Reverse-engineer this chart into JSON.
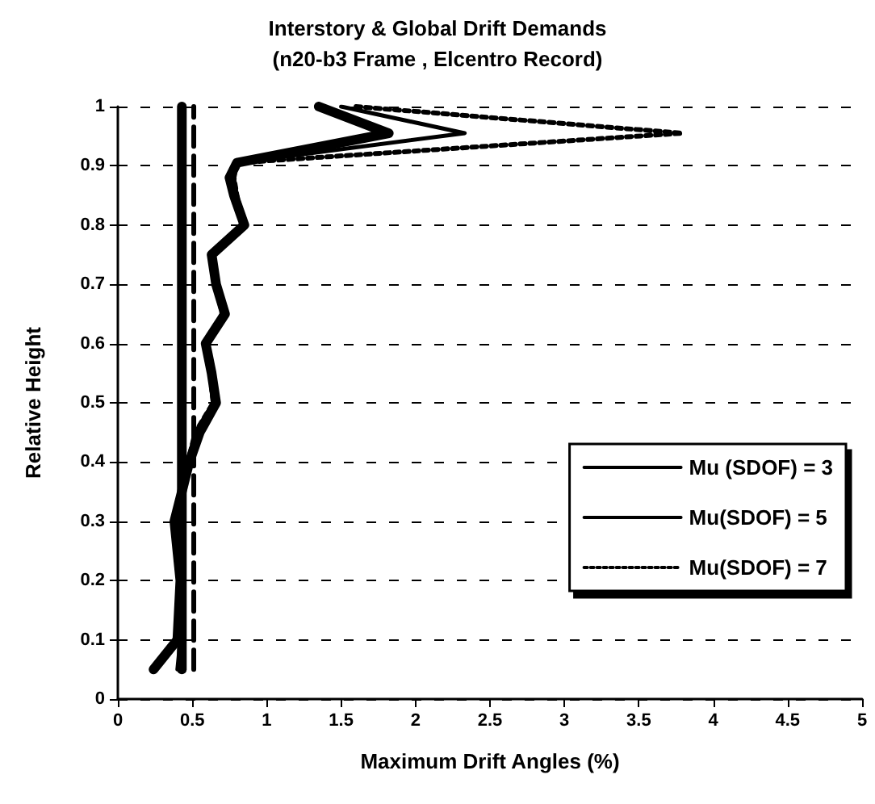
{
  "chart_data": {
    "type": "line",
    "title": "Interstory & Global Drift Demands",
    "subtitle": "(n20-b3 Frame , Elcentro Record)",
    "xlabel": "Maximum Drift Angles (%)",
    "ylabel": "Relative Height",
    "xlim": [
      0,
      5
    ],
    "xticks": [
      0,
      0.5,
      1,
      1.5,
      2,
      2.5,
      3,
      3.5,
      4,
      4.5,
      5
    ],
    "ylim": [
      0,
      1
    ],
    "yticks": [
      0,
      0.1,
      0.2,
      0.3,
      0.4,
      0.5,
      0.6,
      0.7,
      0.8,
      0.9,
      1
    ],
    "grid": "y",
    "legend": "right",
    "marker": "none",
    "series": [
      {
        "name": "Mu (SDOF) = 3",
        "color": "#000000",
        "line_style": "solid",
        "x": [
          1.35,
          1.82,
          0.8,
          0.75,
          0.78,
          0.85,
          0.63,
          0.66,
          0.72,
          0.59,
          0.63,
          0.66,
          0.55,
          0.48,
          0.43,
          0.38,
          0.42,
          0.4,
          0.24
        ],
        "values": [
          1,
          0.955,
          0.905,
          0.88,
          0.85,
          0.8,
          0.75,
          0.7,
          0.65,
          0.6,
          0.55,
          0.5,
          0.45,
          0.4,
          0.35,
          0.3,
          0.2,
          0.1,
          0.05
        ]
      },
      {
        "color": "#000000",
        "line_style": "solid",
        "x": [
          0.43,
          0.43
        ],
        "values": [
          0.05,
          1
        ]
      },
      {
        "name": "Mu(SDOF) = 5",
        "color": "#000000",
        "line_style": "solid",
        "x": [
          1.5,
          2.33,
          0.8,
          0.78,
          0.8,
          0.85,
          0.63,
          0.66,
          0.7,
          0.6,
          0.62,
          0.64,
          0.52,
          0.47,
          0.43,
          0.4,
          0.42,
          0.42,
          0.4
        ],
        "values": [
          1,
          0.955,
          0.905,
          0.88,
          0.85,
          0.8,
          0.75,
          0.7,
          0.65,
          0.6,
          0.55,
          0.5,
          0.45,
          0.4,
          0.35,
          0.3,
          0.2,
          0.1,
          0.05
        ]
      },
      {
        "name": "Mu(SDOF) = 7",
        "color": "#000000",
        "line_style": "dotted",
        "x": [
          1.6,
          3.79,
          0.8,
          0.78,
          0.8,
          0.85,
          0.63,
          0.66,
          0.7,
          0.6,
          0.62,
          0.64,
          0.52,
          0.47,
          0.43,
          0.4,
          0.42,
          0.42,
          0.42
        ],
        "values": [
          1,
          0.955,
          0.905,
          0.88,
          0.85,
          0.8,
          0.75,
          0.7,
          0.65,
          0.6,
          0.55,
          0.5,
          0.45,
          0.4,
          0.35,
          0.3,
          0.2,
          0.1,
          0.05
        ]
      },
      {
        "color": "#000000",
        "line_style": "dashed",
        "x": [
          0.51,
          0.51
        ],
        "values": [
          0.05,
          1
        ]
      }
    ]
  }
}
